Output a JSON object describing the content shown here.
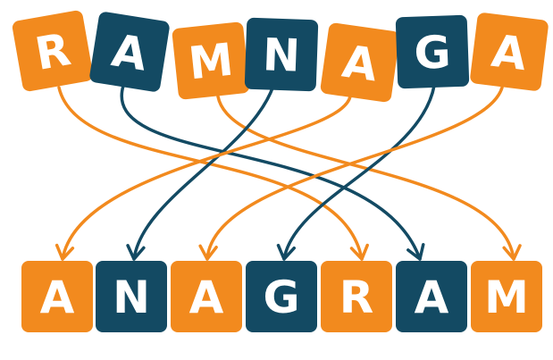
{
  "colors": {
    "orange": "#f28a1e",
    "navy": "#134a63",
    "background": "#ffffff"
  },
  "scrambled": {
    "letters": [
      {
        "char": "R",
        "color": "orange"
      },
      {
        "char": "A",
        "color": "navy"
      },
      {
        "char": "M",
        "color": "orange"
      },
      {
        "char": "N",
        "color": "navy"
      },
      {
        "char": "A",
        "color": "orange"
      },
      {
        "char": "G",
        "color": "navy"
      },
      {
        "char": "A",
        "color": "orange"
      }
    ]
  },
  "word": {
    "letters": [
      {
        "char": "A",
        "color": "orange"
      },
      {
        "char": "N",
        "color": "navy"
      },
      {
        "char": "A",
        "color": "orange"
      },
      {
        "char": "G",
        "color": "navy"
      },
      {
        "char": "R",
        "color": "orange"
      },
      {
        "char": "A",
        "color": "navy"
      },
      {
        "char": "M",
        "color": "orange"
      }
    ]
  },
  "mapping": [
    {
      "from": 0,
      "to": 4,
      "color": "orange"
    },
    {
      "from": 1,
      "to": 5,
      "color": "navy"
    },
    {
      "from": 2,
      "to": 6,
      "color": "orange"
    },
    {
      "from": 3,
      "to": 1,
      "color": "navy"
    },
    {
      "from": 4,
      "to": 0,
      "color": "orange"
    },
    {
      "from": 5,
      "to": 3,
      "color": "navy"
    },
    {
      "from": 6,
      "to": 2,
      "color": "orange"
    }
  ]
}
